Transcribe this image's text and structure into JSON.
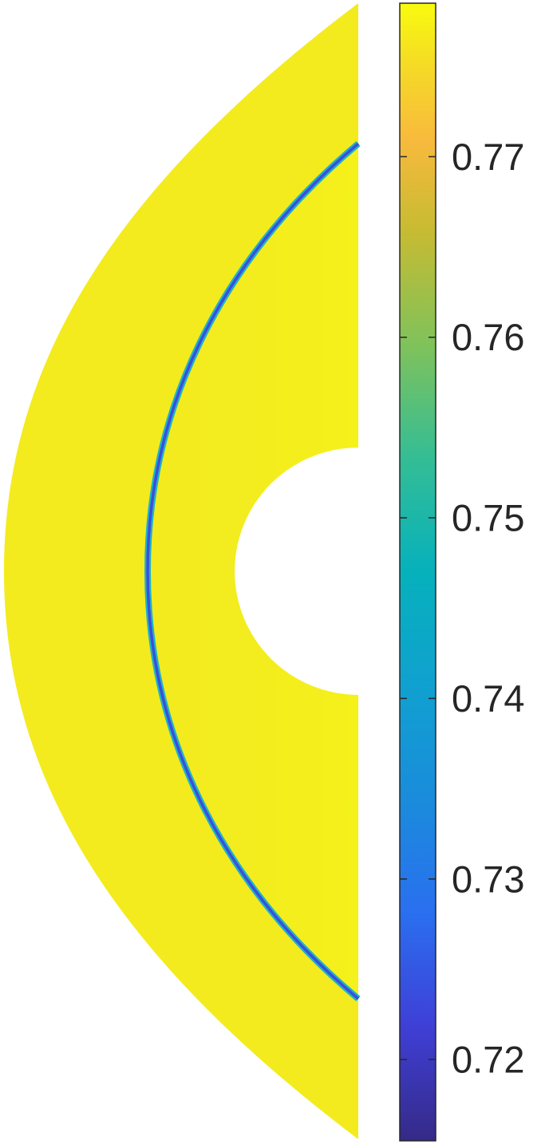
{
  "chart_data": {
    "type": "heatmap",
    "title": "",
    "xlabel": "",
    "ylabel": "",
    "colormap": "parula",
    "colorbar": {
      "orientation": "vertical",
      "placement": "right",
      "clim": [
        0.7155,
        0.7785
      ],
      "ticks": [
        0.72,
        0.73,
        0.74,
        0.75,
        0.76,
        0.77
      ],
      "tick_labels": [
        "0.72",
        "0.73",
        "0.74",
        "0.75",
        "0.76",
        "0.77"
      ]
    },
    "field": {
      "domain": "half-annulus between a circular body (left half) and a curved outer boundary",
      "background_value": 0.776,
      "shock_band_min_value": 0.723,
      "shock_band_edge_value": 0.745,
      "colors": {
        "background": "#F3EB1E",
        "inner_region": "#F6F518",
        "shock_core": "#3B4FD9",
        "shock_edge": "#1FB3C9"
      }
    }
  }
}
